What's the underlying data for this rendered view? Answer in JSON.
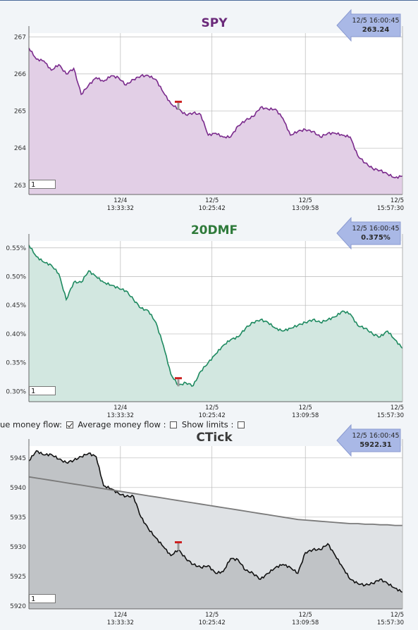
{
  "options": {
    "item1_label": "ue money flow:",
    "item1_checked": true,
    "item2_label": "Average money flow :",
    "item2_checked": false,
    "item3_label": "Show limits :",
    "item3_checked": false
  },
  "chart_data": [
    {
      "id": "spy",
      "type": "area",
      "title": "SPY",
      "title_color": "#6b2a7a",
      "line_color": "#7a2a8c",
      "fill_color": "#e2cfe6",
      "ylim": [
        262.75,
        267.1
      ],
      "yticks": [
        263,
        264,
        265,
        266,
        267
      ],
      "ytick_labels": [
        "263",
        "264",
        "265",
        "266",
        "267"
      ],
      "x_ticks": [
        {
          "date": "12/4",
          "time": "13:33:32"
        },
        {
          "date": "12/5",
          "time": "10:25:42"
        },
        {
          "date": "12/5",
          "time": "13:09:58"
        },
        {
          "date": "12/5",
          "time": "15:57:30"
        }
      ],
      "callout": {
        "time": "12/5 16:00:45",
        "value": "263.24"
      },
      "zoom_value": "1",
      "x": [
        0,
        2,
        4,
        6,
        8,
        10,
        12,
        14,
        16,
        18,
        20,
        22,
        24,
        26,
        28,
        30,
        32,
        34,
        36,
        38,
        40,
        42,
        44,
        46,
        48,
        50,
        52,
        54,
        56,
        58,
        60,
        62,
        64,
        66,
        68,
        70,
        72,
        74,
        76,
        78,
        80,
        82,
        84,
        86,
        88,
        90,
        92,
        94,
        96,
        98,
        100
      ],
      "values": [
        266.7,
        266.4,
        266.35,
        266.1,
        266.25,
        266.0,
        266.15,
        265.45,
        265.7,
        265.9,
        265.8,
        265.95,
        265.9,
        265.7,
        265.85,
        265.95,
        265.95,
        265.85,
        265.5,
        265.2,
        265.05,
        264.9,
        264.95,
        264.9,
        264.35,
        264.4,
        264.3,
        264.3,
        264.6,
        264.75,
        264.85,
        265.1,
        265.05,
        265.05,
        264.8,
        264.35,
        264.45,
        264.5,
        264.45,
        264.3,
        264.4,
        264.4,
        264.35,
        264.3,
        263.8,
        263.6,
        263.45,
        263.4,
        263.3,
        263.2,
        263.25
      ],
      "marker_x": 40
    },
    {
      "id": "dmf",
      "type": "area",
      "title": "20DMF",
      "title_color": "#2e7a3a",
      "line_color": "#1e8a60",
      "fill_color": "#d2e7e0",
      "ylim": [
        0.282,
        0.562
      ],
      "yticks": [
        0.3,
        0.35,
        0.4,
        0.45,
        0.5,
        0.55
      ],
      "ytick_labels": [
        "0.30%",
        "0.35%",
        "0.40%",
        "0.45%",
        "0.50%",
        "0.55%"
      ],
      "x_ticks": [
        {
          "date": "12/4",
          "time": "13:33:32"
        },
        {
          "date": "12/5",
          "time": "10:25:42"
        },
        {
          "date": "12/5",
          "time": "13:09:58"
        },
        {
          "date": "12/5",
          "time": "15:57:30"
        }
      ],
      "callout": {
        "time": "12/5 16:00:45",
        "value": "0.375%"
      },
      "zoom_value": "1",
      "x": [
        0,
        2,
        4,
        6,
        8,
        10,
        12,
        14,
        16,
        18,
        20,
        22,
        24,
        26,
        28,
        30,
        32,
        34,
        36,
        38,
        40,
        42,
        44,
        46,
        48,
        50,
        52,
        54,
        56,
        58,
        60,
        62,
        64,
        66,
        68,
        70,
        72,
        74,
        76,
        78,
        80,
        82,
        84,
        86,
        88,
        90,
        92,
        94,
        96,
        98,
        100
      ],
      "values": [
        0.555,
        0.535,
        0.525,
        0.52,
        0.505,
        0.46,
        0.49,
        0.49,
        0.51,
        0.5,
        0.49,
        0.485,
        0.48,
        0.475,
        0.46,
        0.445,
        0.44,
        0.42,
        0.38,
        0.33,
        0.31,
        0.315,
        0.31,
        0.335,
        0.35,
        0.365,
        0.38,
        0.39,
        0.395,
        0.41,
        0.42,
        0.425,
        0.42,
        0.41,
        0.405,
        0.41,
        0.415,
        0.42,
        0.425,
        0.42,
        0.425,
        0.43,
        0.44,
        0.435,
        0.415,
        0.41,
        0.4,
        0.395,
        0.405,
        0.39,
        0.375
      ],
      "marker_x": 40
    },
    {
      "id": "ctick",
      "type": "area",
      "title": "CTick",
      "title_color": "#3a3a3a",
      "line_color": "#111111",
      "fill_color": "#c0c3c6",
      "avg_line_color": "#7a7a7a",
      "avg_fill_color": "#dfe2e5",
      "ylim": [
        5919.5,
        5947
      ],
      "yticks": [
        5920,
        5925,
        5930,
        5935,
        5940,
        5945
      ],
      "ytick_labels": [
        "5920",
        "5925",
        "5930",
        "5935",
        "5940",
        "5945"
      ],
      "x_ticks": [
        {
          "date": "12/4",
          "time": "13:33:32"
        },
        {
          "date": "12/5",
          "time": "10:25:42"
        },
        {
          "date": "12/5",
          "time": "13:09:58"
        },
        {
          "date": "12/5",
          "time": "15:57:30"
        }
      ],
      "callout": {
        "time": "12/5 16:00:45",
        "value": "5922.31"
      },
      "zoom_value": "1",
      "x": [
        0,
        2,
        4,
        6,
        8,
        10,
        12,
        14,
        16,
        18,
        20,
        22,
        24,
        26,
        28,
        30,
        32,
        34,
        36,
        38,
        40,
        42,
        44,
        46,
        48,
        50,
        52,
        54,
        56,
        58,
        60,
        62,
        64,
        66,
        68,
        70,
        72,
        74,
        76,
        78,
        80,
        82,
        84,
        86,
        88,
        90,
        92,
        94,
        96,
        98,
        100
      ],
      "values": [
        5944.5,
        5946.2,
        5945.5,
        5945.6,
        5944.8,
        5944.2,
        5944.6,
        5945.2,
        5945.8,
        5945.2,
        5940.3,
        5939.8,
        5939.0,
        5938.5,
        5938.5,
        5935.0,
        5933.0,
        5931.5,
        5930.0,
        5928.5,
        5929.5,
        5928.0,
        5927.0,
        5926.5,
        5926.8,
        5925.5,
        5925.8,
        5928.0,
        5927.8,
        5926.0,
        5925.5,
        5924.5,
        5925.5,
        5926.5,
        5927.0,
        5926.5,
        5925.5,
        5929.0,
        5929.5,
        5929.5,
        5930.5,
        5928.5,
        5926.5,
        5924.5,
        5923.8,
        5923.5,
        5923.8,
        5924.5,
        5923.8,
        5923.0,
        5922.3
      ],
      "avg_values": [
        5941.8,
        5941.6,
        5941.4,
        5941.2,
        5941.0,
        5940.8,
        5940.6,
        5940.4,
        5940.2,
        5940.0,
        5939.8,
        5939.6,
        5939.4,
        5939.2,
        5939.0,
        5938.8,
        5938.6,
        5938.4,
        5938.2,
        5938.0,
        5937.8,
        5937.6,
        5937.4,
        5937.2,
        5937.0,
        5936.8,
        5936.6,
        5936.4,
        5936.2,
        5936.0,
        5935.8,
        5935.6,
        5935.4,
        5935.2,
        5935.0,
        5934.8,
        5934.6,
        5934.5,
        5934.4,
        5934.3,
        5934.2,
        5934.1,
        5934.0,
        5933.9,
        5933.9,
        5933.8,
        5933.8,
        5933.7,
        5933.7,
        5933.6,
        5933.6
      ],
      "marker_x": 40
    }
  ]
}
